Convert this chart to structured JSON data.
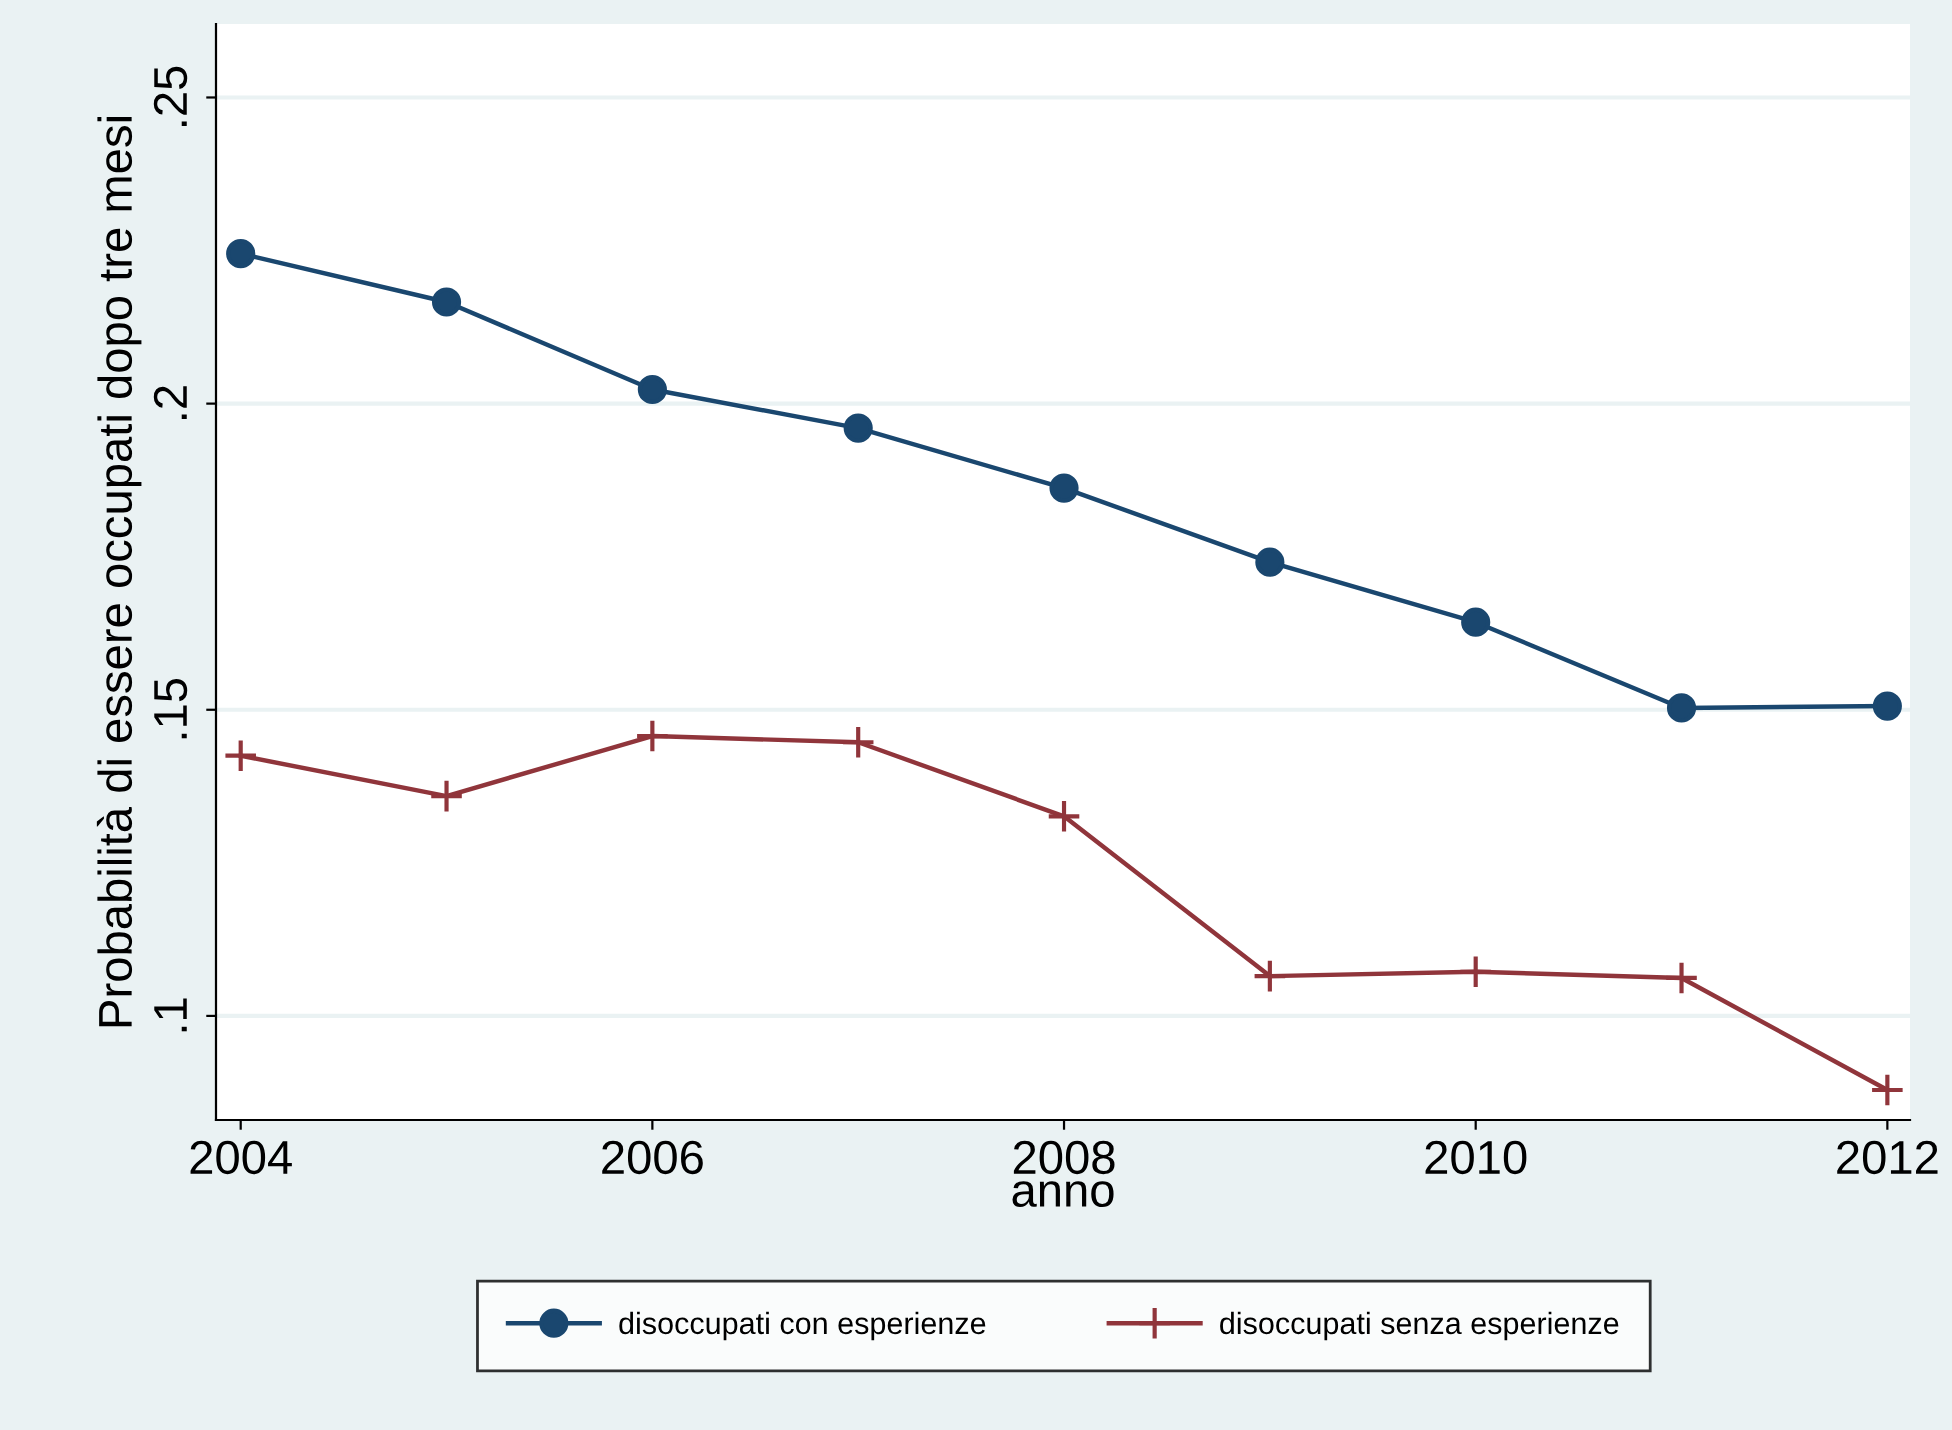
{
  "chart_data": {
    "type": "line",
    "xlabel": "anno",
    "ylabel": "Probabilità di essere occupati dopo tre mesi",
    "x": [
      2004,
      2005,
      2006,
      2007,
      2008,
      2009,
      2010,
      2011,
      2012
    ],
    "series": [
      {
        "name": "disoccupati con esperienze",
        "color": "#1a476f",
        "marker": "circle",
        "values": [
          0.2245,
          0.2166,
          0.2023,
          0.196,
          0.1862,
          0.1741,
          0.1643,
          0.1503,
          0.1506
        ]
      },
      {
        "name": "disoccupati senza esperienze",
        "color": "#90353b",
        "marker": "cross",
        "values": [
          0.1425,
          0.1359,
          0.1457,
          0.1447,
          0.1326,
          0.1065,
          0.1072,
          0.1062,
          0.0879
        ]
      }
    ],
    "xlim": [
      2003.88,
      2012.11
    ],
    "xticks": [
      2004,
      2006,
      2008,
      2010,
      2012
    ],
    "ylim": [
      0.083,
      0.262
    ],
    "yticks": [
      {
        "value": 0.1,
        "label": ".1"
      },
      {
        "value": 0.15,
        "label": ".15"
      },
      {
        "value": 0.2,
        "label": ".2"
      },
      {
        "value": 0.25,
        "label": ".25"
      }
    ],
    "grid": "y",
    "legend": "bottom",
    "line_style": "solid"
  }
}
